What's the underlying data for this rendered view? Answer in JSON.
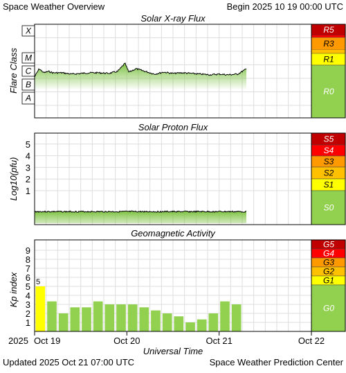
{
  "header": {
    "title": "Space Weather Overview",
    "begin": "Begin 2025 10 19 00:00 UTC"
  },
  "footer": {
    "updated": "Updated 2025 Oct 21 07:00 UTC",
    "credit": "Space Weather Prediction Center",
    "xlabel": "Universal Time"
  },
  "x_axis": {
    "year": "2025",
    "ticks": [
      {
        "label": "Oct 19",
        "day": 0
      },
      {
        "label": "Oct 20",
        "day": 1
      },
      {
        "label": "Oct 21",
        "day": 2
      },
      {
        "label": "Oct 22",
        "day": 3
      }
    ]
  },
  "colors": {
    "green": "#92d050",
    "yellow": "#ffff00",
    "gold": "#ffc000",
    "orange": "#ff9900",
    "red": "#ff0000",
    "darkred": "#c00000",
    "grid": "#dddddd",
    "trace": "#000000",
    "fill": "#7dc242"
  },
  "chart_data": [
    {
      "type": "line",
      "title": "Solar X-ray Flux",
      "ylabel": "Flare Class",
      "y_classes": [
        "X",
        "M",
        "C",
        "B",
        "A"
      ],
      "scale_labels": [
        {
          "label": "R5",
          "level": "extreme"
        },
        {
          "label": "R3",
          "level": "strong"
        },
        {
          "label": "R1",
          "level": "minor"
        },
        {
          "label": "R0",
          "level": "none"
        }
      ],
      "flux_class_x": [
        0.0,
        0.05,
        0.1,
        0.15,
        0.2,
        0.3,
        0.4,
        0.5,
        0.6,
        0.7,
        0.8,
        0.9,
        0.98,
        1.02,
        1.1,
        1.2,
        1.3,
        1.4,
        1.5,
        1.6,
        1.7,
        1.8,
        1.9,
        2.0,
        2.1,
        2.2,
        2.3
      ],
      "flux_class_y": [
        2.6,
        3.2,
        2.9,
        3.0,
        2.9,
        2.9,
        2.8,
        2.85,
        2.9,
        2.9,
        2.85,
        3.0,
        3.6,
        2.95,
        3.2,
        3.0,
        2.8,
        2.95,
        2.85,
        2.9,
        2.85,
        2.8,
        2.75,
        2.8,
        2.75,
        2.8,
        3.2
      ]
    },
    {
      "type": "line",
      "title": "Solar Proton Flux",
      "ylabel": "Log10(pfu)",
      "yticks": [
        1,
        2,
        3,
        4,
        5
      ],
      "scale_labels": [
        {
          "label": "S5",
          "level": "extreme"
        },
        {
          "label": "S4",
          "level": "severe"
        },
        {
          "label": "S3",
          "level": "strong"
        },
        {
          "label": "S2",
          "level": "moderate"
        },
        {
          "label": "S1",
          "level": "minor"
        },
        {
          "label": "S0",
          "level": "none"
        }
      ],
      "x": [
        0.0,
        2.3
      ],
      "y": [
        -0.8,
        -0.8
      ]
    },
    {
      "type": "bar",
      "title": "Geomagnetic Activity",
      "ylabel": "Kp index",
      "yticks": [
        1,
        2,
        3,
        4,
        5,
        6,
        7,
        8,
        9
      ],
      "ylim": [
        0,
        10
      ],
      "scale_labels": [
        {
          "label": "G5",
          "level": "extreme"
        },
        {
          "label": "G4",
          "level": "severe"
        },
        {
          "label": "G3",
          "level": "strong"
        },
        {
          "label": "G2",
          "level": "moderate"
        },
        {
          "label": "G1",
          "level": "minor"
        },
        {
          "label": "G0",
          "level": "none"
        }
      ],
      "annotation": "5",
      "x_day_start": [
        0.0,
        0.125,
        0.25,
        0.375,
        0.5,
        0.625,
        0.75,
        0.875,
        1.0,
        1.125,
        1.25,
        1.375,
        1.5,
        1.625,
        1.75,
        1.875,
        2.0,
        2.125,
        2.25
      ],
      "values": [
        5.0,
        3.33,
        2.0,
        2.67,
        2.67,
        3.33,
        3.0,
        3.0,
        3.0,
        2.67,
        2.33,
        2.0,
        1.67,
        1.0,
        1.33,
        2.0,
        3.33,
        3.0
      ]
    }
  ]
}
